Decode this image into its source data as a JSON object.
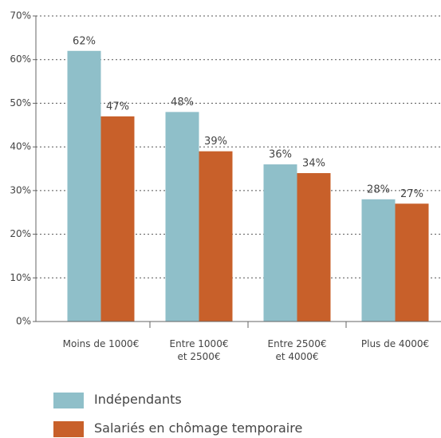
{
  "chart_data": {
    "type": "bar",
    "categories": [
      "Moins de 1000€",
      "Entre 1000€\net 2500€",
      "Entre 2500€\net 4000€",
      "Plus de 4000€"
    ],
    "series": [
      {
        "name": "Indépendants",
        "color": "#8fbfc9",
        "values": [
          62,
          48,
          36,
          28
        ],
        "value_labels": [
          "62%",
          "48%",
          "36%",
          "28%"
        ]
      },
      {
        "name": "Salariés en chômage temporaire",
        "color": "#c8602a",
        "values": [
          47,
          39,
          34,
          27
        ],
        "value_labels": [
          "47%",
          "39%",
          "34%",
          "27%"
        ]
      }
    ],
    "ylim": [
      0,
      70
    ],
    "yticks": [
      {
        "value": 0,
        "label": "0%"
      },
      {
        "value": 10,
        "label": "10%"
      },
      {
        "value": 20,
        "label": "20%"
      },
      {
        "value": 30,
        "label": "30%"
      },
      {
        "value": 40,
        "label": "40%"
      },
      {
        "value": 50,
        "label": "50%"
      },
      {
        "value": 60,
        "label": "60%"
      },
      {
        "value": 70,
        "label": "70%"
      }
    ],
    "grid": true
  }
}
